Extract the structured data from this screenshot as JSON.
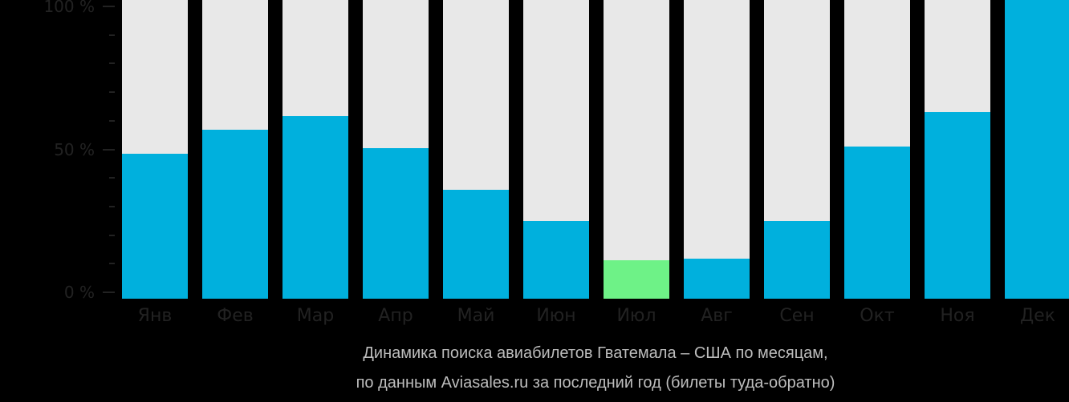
{
  "chart_data": {
    "type": "bar",
    "stacked_percent_background": true,
    "title": "Динамика поиска авиабилетов Гватемала – США по месяцам,",
    "subtitle": "по данным Aviasales.ru за последний год (билеты туда-обратно)",
    "xlabel": "",
    "ylabel": "",
    "ylim": [
      0,
      100
    ],
    "yticks": [
      "0 %",
      "50 %",
      "100 %"
    ],
    "categories": [
      "Янв",
      "Фев",
      "Мар",
      "Апр",
      "Май",
      "Июн",
      "Июл",
      "Авг",
      "Сен",
      "Окт",
      "Ноя",
      "Дек"
    ],
    "values": [
      48.5,
      56.5,
      61,
      50.5,
      36.5,
      26,
      13,
      13.5,
      26,
      51,
      62.5,
      100
    ],
    "highlight_index": 6,
    "grid": false,
    "legend": null
  },
  "colors": {
    "bar": "#00b0dd",
    "highlight": "#6ef287",
    "background_bar": "#e8e8e8",
    "axis_text": "#222222",
    "caption_text": "#bdbdbd",
    "page_background": "#000000"
  },
  "caption": {
    "line1": "Динамика поиска авиабилетов Гватемала – США по месяцам,",
    "line2": "по данным Aviasales.ru за последний год (билеты туда-обратно)"
  }
}
